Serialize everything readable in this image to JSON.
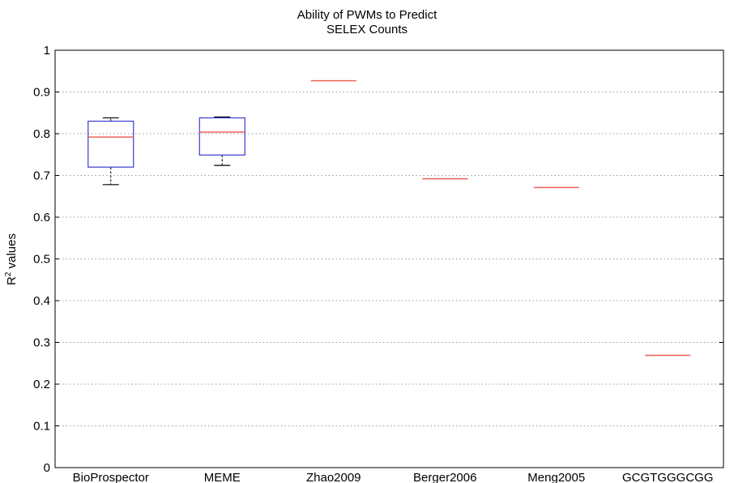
{
  "chart_data": {
    "type": "boxplot",
    "title": [
      "Ability of PWMs to Predict",
      "SELEX Counts"
    ],
    "ylabel_prefix": "R",
    "ylabel_sup": "2",
    "ylabel_suffix": " values",
    "xlabel": "",
    "ylim": [
      0,
      1
    ],
    "yticks": [
      0,
      0.1,
      0.2,
      0.3,
      0.4,
      0.5,
      0.6,
      0.7,
      0.8,
      0.9,
      1
    ],
    "ytick_labels": [
      "0",
      "0.1",
      "0.2",
      "0.3",
      "0.4",
      "0.5",
      "0.6",
      "0.7",
      "0.8",
      "0.9",
      "1"
    ],
    "grid": "horizontal dotted",
    "categories": [
      "BioProspector",
      "MEME",
      "Zhao2009",
      "Berger2006",
      "Meng2005",
      "GCGTGGGCGG"
    ],
    "boxes": [
      {
        "whisker_low": 0.678,
        "q1": 0.72,
        "median": 0.792,
        "q3": 0.83,
        "whisker_high": 0.838
      },
      {
        "whisker_low": 0.724,
        "q1": 0.749,
        "median": 0.804,
        "q3": 0.838,
        "whisker_high": 0.84
      },
      {
        "whisker_low": 0.927,
        "q1": 0.927,
        "median": 0.927,
        "q3": 0.927,
        "whisker_high": 0.927
      },
      {
        "whisker_low": 0.692,
        "q1": 0.692,
        "median": 0.692,
        "q3": 0.692,
        "whisker_high": 0.692
      },
      {
        "whisker_low": 0.671,
        "q1": 0.671,
        "median": 0.671,
        "q3": 0.671,
        "whisker_high": 0.671
      },
      {
        "whisker_low": 0.269,
        "q1": 0.269,
        "median": 0.269,
        "q3": 0.269,
        "whisker_high": 0.269
      }
    ],
    "colors": {
      "box": "#3a3ad0",
      "median": "#f0625a",
      "whisker": "#000000",
      "grid": "#9a9a9a"
    }
  }
}
